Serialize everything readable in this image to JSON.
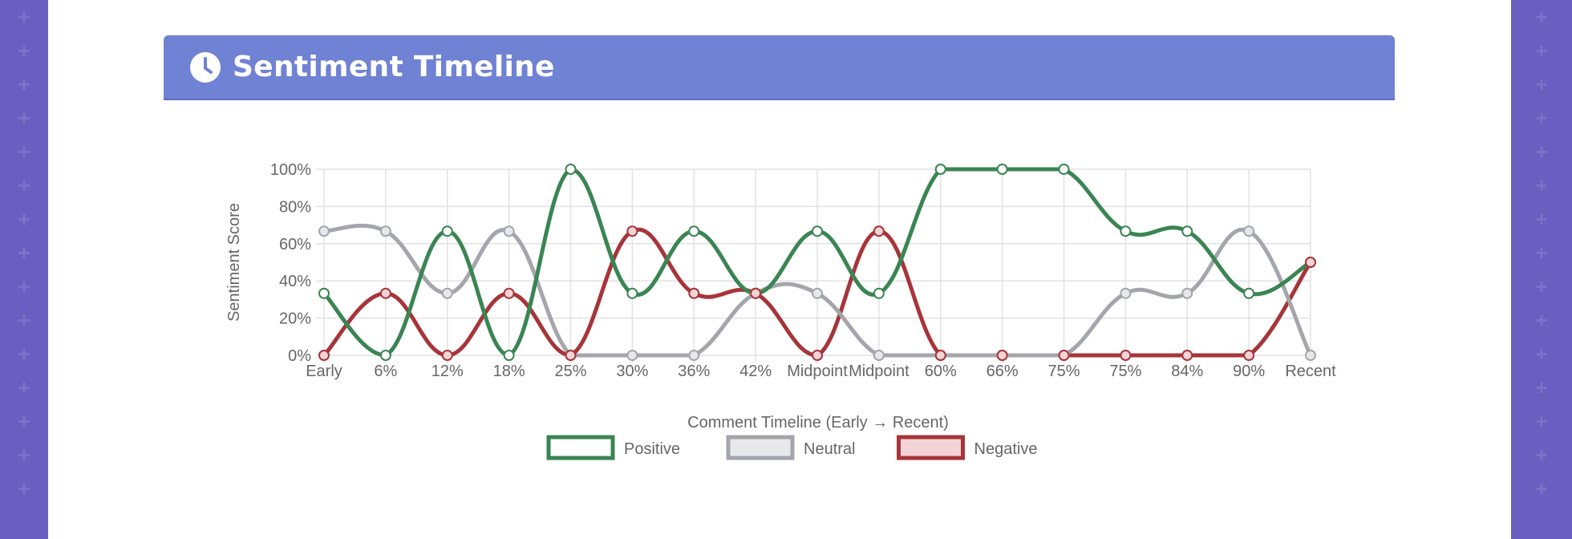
{
  "header": {
    "title": "Sentiment Timeline",
    "icon": "clock-icon"
  },
  "chart_data": {
    "type": "line",
    "categories": [
      "Early",
      "6%",
      "12%",
      "18%",
      "25%",
      "30%",
      "36%",
      "42%",
      "Midpoint",
      "Midpoint",
      "60%",
      "66%",
      "75%",
      "75%",
      "84%",
      "90%",
      "Recent"
    ],
    "series": [
      {
        "name": "Positive",
        "color": "#3a8553",
        "fill": "#ffffff",
        "values": [
          33.3,
          0,
          66.7,
          0,
          100,
          33.3,
          66.7,
          33.3,
          66.7,
          33.3,
          100,
          100,
          100,
          66.7,
          66.7,
          33.3,
          50
        ]
      },
      {
        "name": "Neutral",
        "color": "#a4a6ab",
        "fill": "#e8e8ea",
        "values": [
          66.7,
          66.7,
          33.3,
          66.7,
          0,
          0,
          0,
          33.3,
          33.3,
          0,
          0,
          0,
          0,
          33.3,
          33.3,
          66.7,
          0
        ]
      },
      {
        "name": "Negative",
        "color": "#a6353a",
        "fill": "#f3d4d6",
        "values": [
          0,
          33.3,
          0,
          33.3,
          0,
          66.7,
          33.3,
          33.3,
          0,
          66.7,
          0,
          0,
          0,
          0,
          0,
          0,
          50
        ]
      }
    ],
    "xlabel": "Comment Timeline (Early → Recent)",
    "ylabel": "Sentiment Score",
    "ylim": [
      0,
      100
    ],
    "yticks": [
      "0%",
      "20%",
      "40%",
      "60%",
      "80%",
      "100%"
    ],
    "grid": true,
    "legend": "bottom"
  }
}
